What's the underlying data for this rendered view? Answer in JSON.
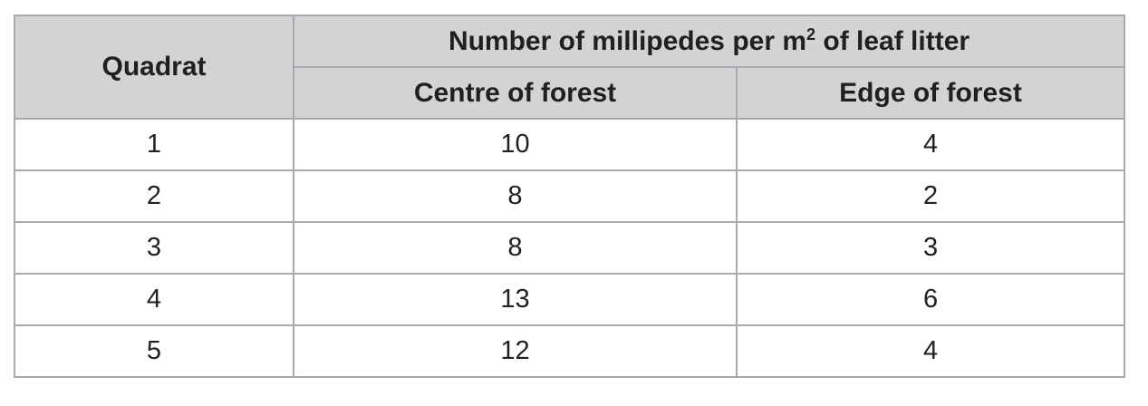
{
  "table": {
    "header": {
      "quadrat_label": "Quadrat",
      "group_label_before": "Number of millipedes per m",
      "group_label_sup": "2",
      "group_label_after": " of leaf litter",
      "centre_label": "Centre of forest",
      "edge_label": "Edge of forest"
    },
    "rows": [
      {
        "quadrat": "1",
        "centre": "10",
        "edge": "4"
      },
      {
        "quadrat": "2",
        "centre": "8",
        "edge": "2"
      },
      {
        "quadrat": "3",
        "centre": "8",
        "edge": "3"
      },
      {
        "quadrat": "4",
        "centre": "13",
        "edge": "6"
      },
      {
        "quadrat": "5",
        "centre": "12",
        "edge": "4"
      }
    ]
  }
}
